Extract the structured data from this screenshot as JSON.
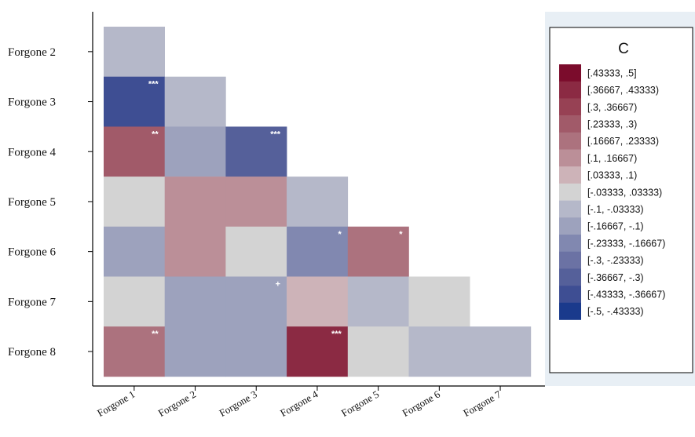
{
  "chart_data": {
    "type": "heatmap",
    "rows": [
      "Forgone 2",
      "Forgone 3",
      "Forgone 4",
      "Forgone 5",
      "Forgone 6",
      "Forgone 7",
      "Forgone 8"
    ],
    "cols": [
      "Forgone 1",
      "Forgone 2",
      "Forgone 3",
      "Forgone 4",
      "Forgone 5",
      "Forgone 6",
      "Forgone 7"
    ],
    "values": [
      [
        -0.07,
        null,
        null,
        null,
        null,
        null,
        null
      ],
      [
        -0.39,
        -0.06,
        null,
        null,
        null,
        null,
        null
      ],
      [
        0.28,
        -0.13,
        -0.32,
        null,
        null,
        null,
        null
      ],
      [
        0.0,
        0.14,
        0.14,
        -0.07,
        null,
        null,
        null
      ],
      [
        -0.13,
        0.12,
        0.0,
        -0.22,
        0.22,
        null,
        null
      ],
      [
        0.0,
        -0.13,
        -0.13,
        0.07,
        -0.06,
        0.0,
        null
      ],
      [
        0.22,
        -0.13,
        -0.13,
        0.4,
        0.0,
        -0.06,
        -0.06
      ]
    ],
    "significance": [
      [
        "",
        "",
        "",
        "",
        "",
        "",
        ""
      ],
      [
        "***",
        "",
        "",
        "",
        "",
        "",
        ""
      ],
      [
        "**",
        "",
        "***",
        "",
        "",
        "",
        ""
      ],
      [
        "",
        "",
        "",
        "",
        "",
        "",
        ""
      ],
      [
        "",
        "",
        "",
        "*",
        "*",
        "",
        ""
      ],
      [
        "",
        "",
        "+",
        "",
        "",
        "",
        ""
      ],
      [
        "**",
        "",
        "",
        "***",
        "",
        "",
        ""
      ]
    ],
    "legend": {
      "title": "C",
      "bins": [
        {
          "label": "[.43333, .5]",
          "color": "#7b0c2c"
        },
        {
          "label": "[.36667, .43333)",
          "color": "#8b2a43"
        },
        {
          "label": "[.3, .36667)",
          "color": "#974154"
        },
        {
          "label": "[.23333, .3)",
          "color": "#a15a69"
        },
        {
          "label": "[.16667, .23333)",
          "color": "#ac727e"
        },
        {
          "label": "[.1, .16667)",
          "color": "#bb8f98"
        },
        {
          "label": "[.03333, .1)",
          "color": "#cdb3b8"
        },
        {
          "label": "[-.03333, .03333)",
          "color": "#d3d3d3"
        },
        {
          "label": "[-.1, -.03333)",
          "color": "#b5b8c9"
        },
        {
          "label": "[-.16667, -.1)",
          "color": "#9da2bd"
        },
        {
          "label": "[-.23333, -.16667)",
          "color": "#8188b0"
        },
        {
          "label": "[-.3, -.23333)",
          "color": "#6b72a4"
        },
        {
          "label": "[-.36667, -.3)",
          "color": "#55609a"
        },
        {
          "label": "[-.43333, -.36667)",
          "color": "#3e4e93"
        },
        {
          "label": "[-.5, -.43333)",
          "color": "#1a3a8c"
        }
      ]
    }
  }
}
